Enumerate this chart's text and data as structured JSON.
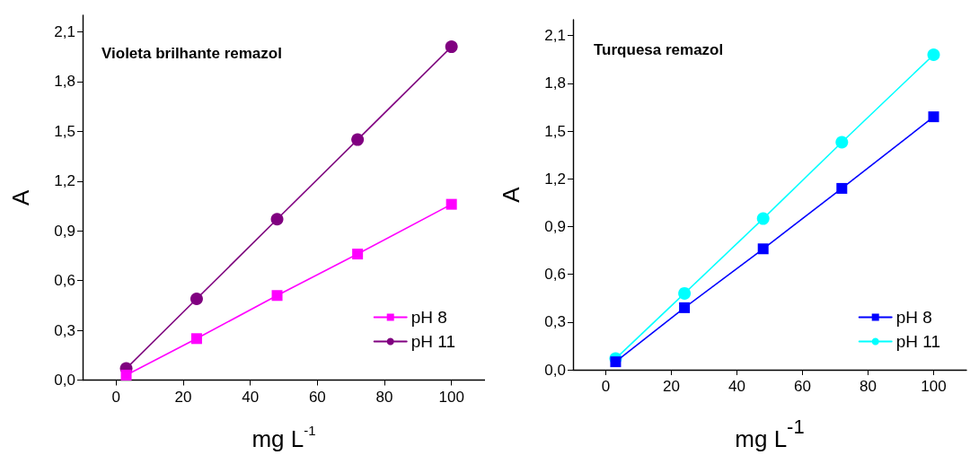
{
  "chart_data": [
    {
      "type": "line",
      "title": "Violeta brilhante remazol",
      "xlabel": "mg L$^{-1}$",
      "ylabel": "A",
      "x": [
        3,
        24,
        48,
        72,
        100
      ],
      "series": [
        {
          "name": "pH 8",
          "color": "#ff00ff",
          "marker": "square",
          "values": [
            0.03,
            0.25,
            0.51,
            0.76,
            1.06
          ]
        },
        {
          "name": "pH 11",
          "color": "#800080",
          "marker": "circle",
          "values": [
            0.07,
            0.49,
            0.97,
            1.45,
            2.01
          ]
        }
      ],
      "xlim": [
        -10,
        110
      ],
      "xticks": [
        0,
        20,
        40,
        60,
        80,
        100
      ],
      "ylim": [
        0,
        2.2
      ],
      "yticks": [
        {
          "value": 0,
          "label": "0,0"
        },
        {
          "value": 0.3,
          "label": "0,3"
        },
        {
          "value": 0.6,
          "label": "0,6"
        },
        {
          "value": 0.9,
          "label": "0,9"
        },
        {
          "value": 1.2,
          "label": "1,2"
        },
        {
          "value": 1.5,
          "label": "1,5"
        },
        {
          "value": 1.8,
          "label": "1,8"
        },
        {
          "value": 2.1,
          "label": "2,1"
        }
      ],
      "grid": false,
      "legend": "bottom right"
    },
    {
      "type": "line",
      "title": "Turquesa remazol",
      "xlabel": "mg L$^{-1}$",
      "ylabel": "A",
      "x": [
        3,
        24,
        48,
        72,
        100
      ],
      "series": [
        {
          "name": "pH 8",
          "color": "#0000ff",
          "marker": "square",
          "values": [
            0.05,
            0.39,
            0.76,
            1.14,
            1.59
          ]
        },
        {
          "name": "pH 11",
          "color": "#00ffff",
          "marker": "circle",
          "values": [
            0.07,
            0.48,
            0.95,
            1.43,
            1.98
          ]
        }
      ],
      "xlim": [
        -10,
        110
      ],
      "xticks": [
        0,
        20,
        40,
        60,
        80,
        100
      ],
      "ylim": [
        0,
        2.2
      ],
      "yticks": [
        {
          "value": 0,
          "label": "0,0"
        },
        {
          "value": 0.3,
          "label": "0,3"
        },
        {
          "value": 0.6,
          "label": "0,6"
        },
        {
          "value": 0.9,
          "label": "0,9"
        },
        {
          "value": 1.2,
          "label": "1,2"
        },
        {
          "value": 1.5,
          "label": "1,5"
        },
        {
          "value": 1.8,
          "label": "1,8"
        },
        {
          "value": 2.1,
          "label": "2,1"
        }
      ],
      "grid": false,
      "legend": "bottom right"
    }
  ]
}
